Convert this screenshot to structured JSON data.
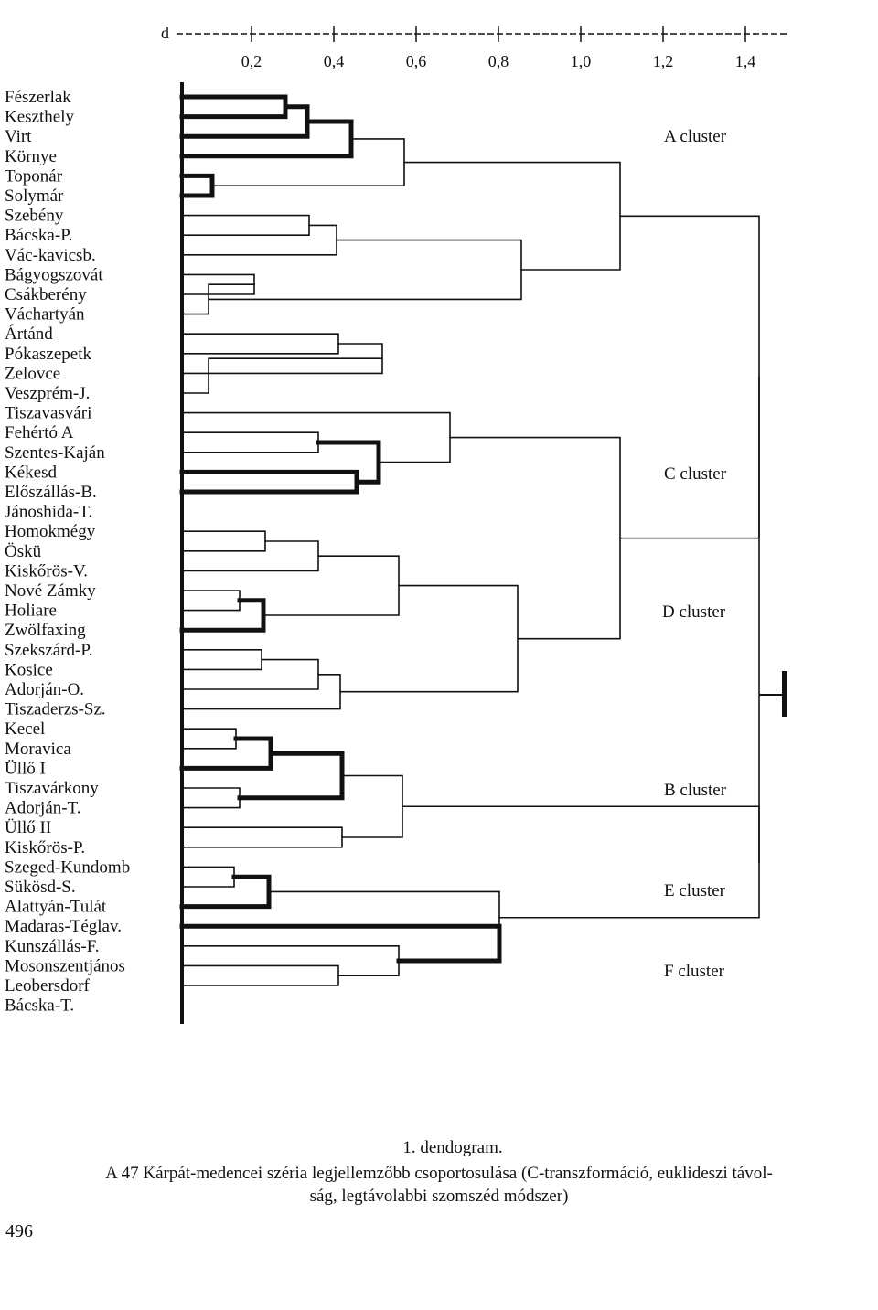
{
  "axis": {
    "label": "d",
    "ticks": [
      "0,2",
      "0,4",
      "0,6",
      "0,8",
      "1,0",
      "1,2",
      "1,4"
    ]
  },
  "leaves": [
    "Fészerlak",
    "Keszthely",
    "Virt",
    "Környe",
    "Toponár",
    "Solymár",
    "Szebény",
    "Bácska-P.",
    "Vác-kavicsb.",
    "Bágyogszovát",
    "Csákberény",
    "Váchartyán",
    "Ártánd",
    "Pókaszepetk",
    "Zelovce",
    "Veszprém-J.",
    "Tiszavasvári",
    "Fehértó A",
    "Szentes-Kaján",
    "Kékesd",
    "Előszállás-B.",
    "Jánoshida-T.",
    "Homokmégy",
    "Öskü",
    "Kiskőrös-V.",
    "Nové Zámky",
    "Holiare",
    "Zwölfaxing",
    "Szekszárd-P.",
    "Kosice",
    "Adorján-O.",
    "Tiszaderzs-Sz.",
    "Kecel",
    "Moravica",
    "Üllő I",
    "Tiszavárkony",
    "Adorján-T.",
    "Üllő II",
    "Kiskőrös-P.",
    "Szeged-Kundomb",
    "Sükösd-S.",
    "Alattyán-Tulát",
    "Madaras-Téglav.",
    "Kunszállás-F.",
    "Mosonszentjános",
    "Leobersdorf",
    "Bácska-T."
  ],
  "clusters": [
    "A cluster",
    "C cluster",
    "D cluster",
    "B cluster",
    "E cluster",
    "F cluster"
  ],
  "caption": {
    "title": "1. dendogram.",
    "line1": "A 47 Kárpát-medencei széria legjellemzőbb csoportosulása (C-transzformáció, euklideszi távol-",
    "line2": "ság, legtávolabbi szomszéd módszer)"
  },
  "page_number": "496"
}
